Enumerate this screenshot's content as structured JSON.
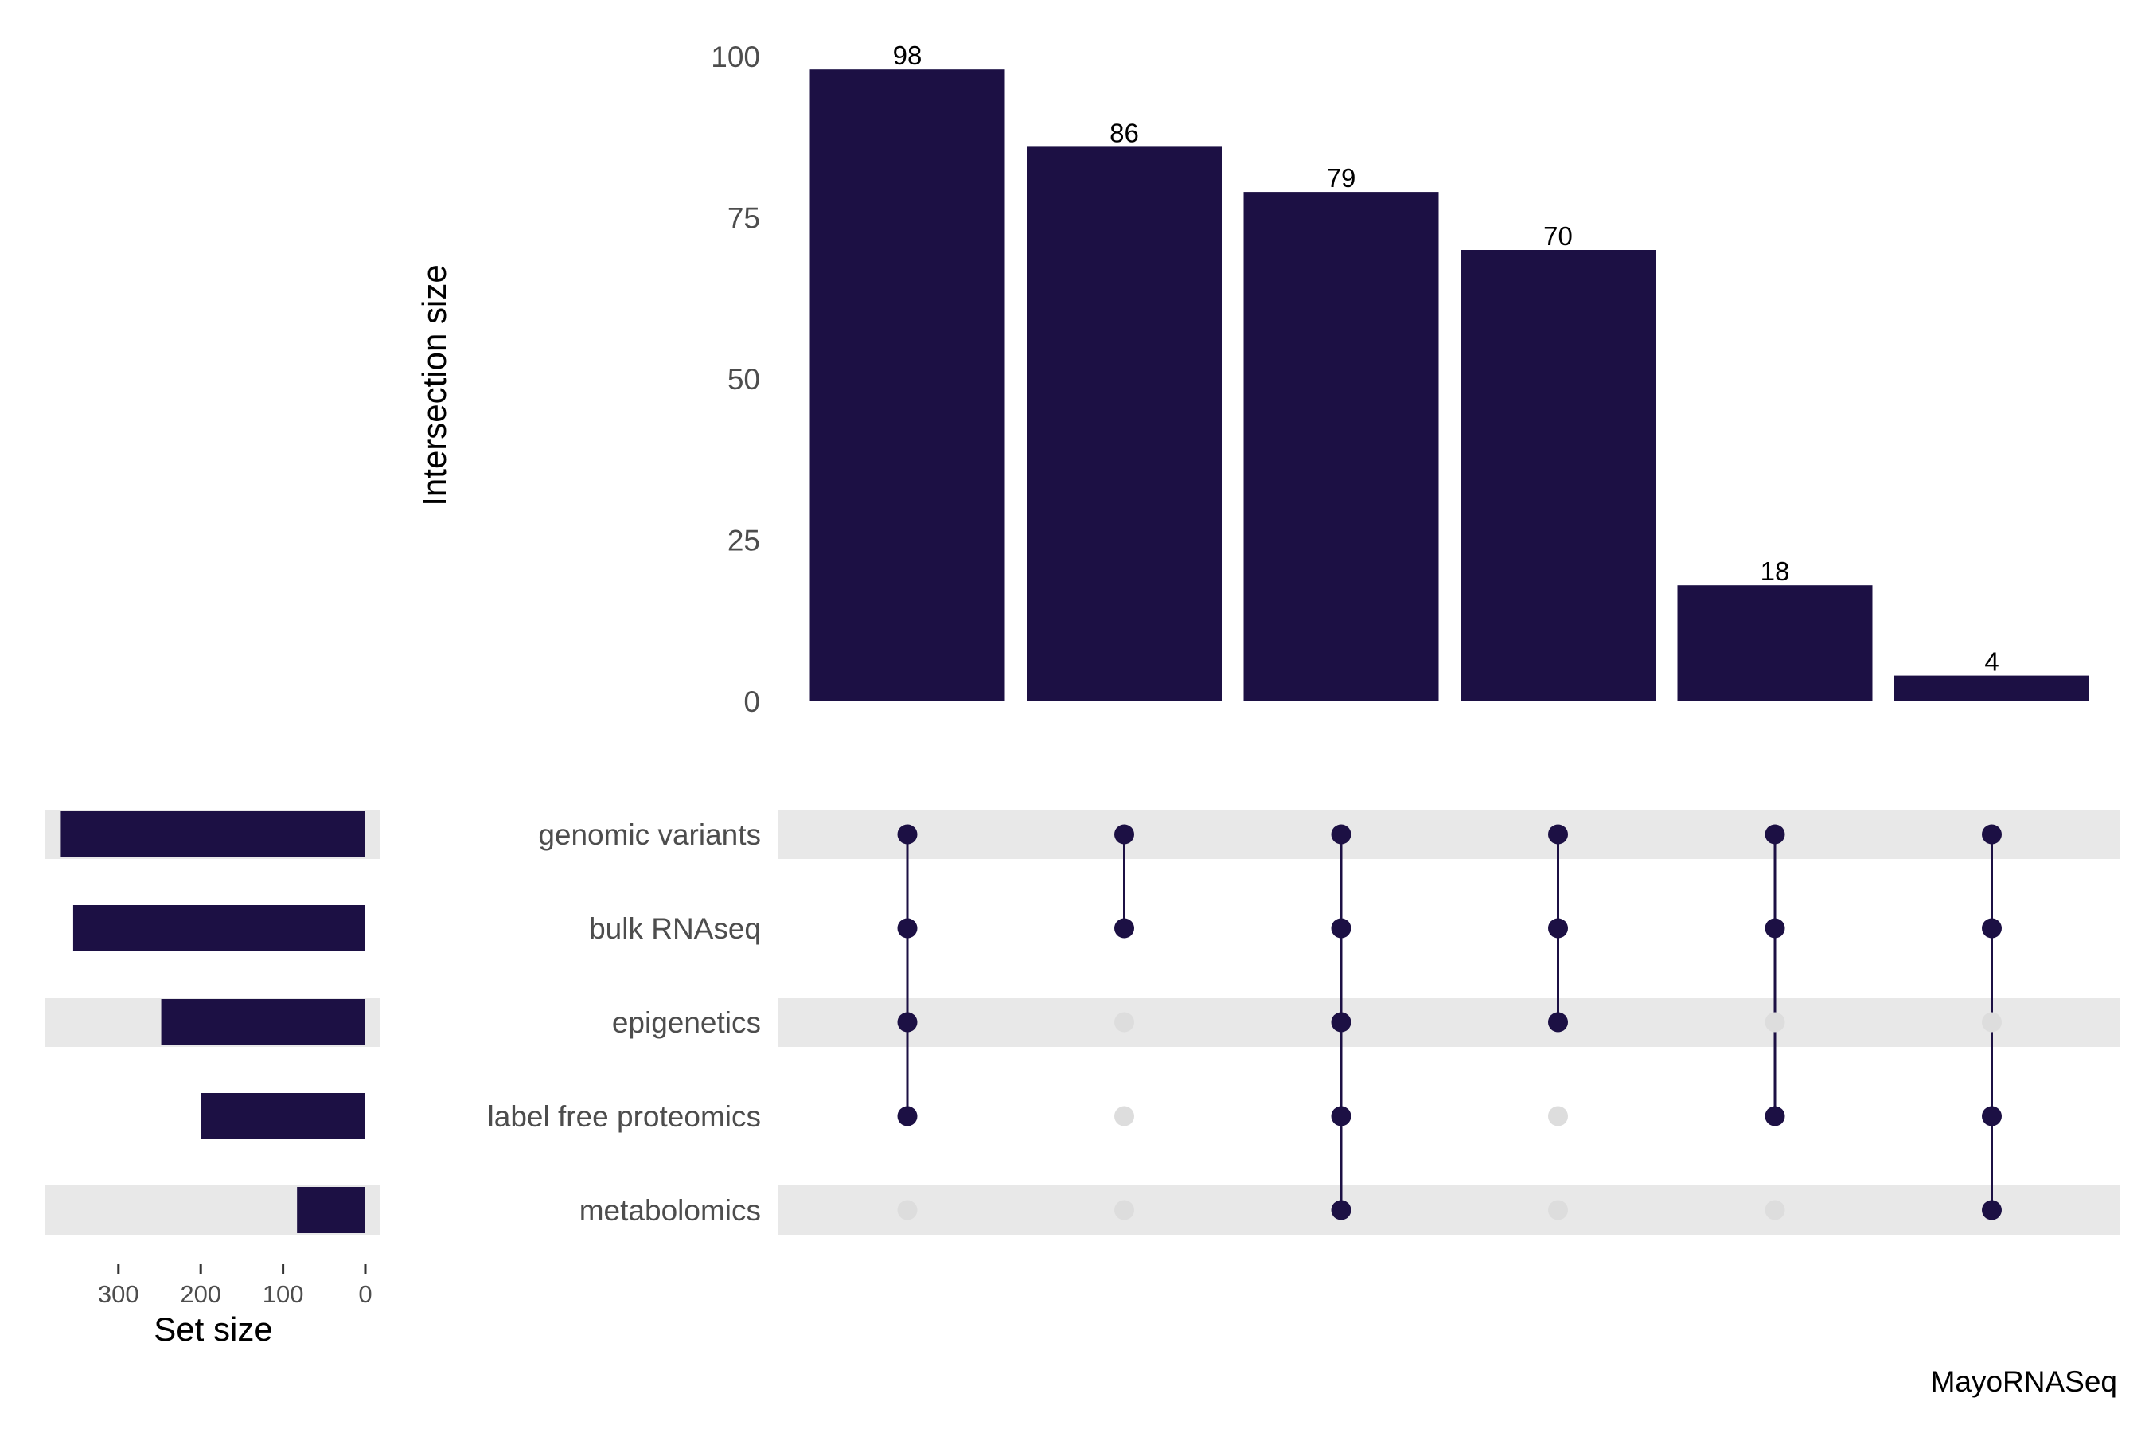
{
  "chart_data": {
    "type": "bar",
    "variant": "upset",
    "ylabel": "Intersection size",
    "ylim": [
      0,
      100
    ],
    "yticks": [
      0,
      25,
      50,
      75,
      100
    ],
    "intersection_sizes": [
      98,
      86,
      79,
      70,
      18,
      4
    ],
    "sets": [
      "genomic variants",
      "bulk RNAseq",
      "epigenetics",
      "label free proteomics",
      "metabolomics"
    ],
    "membership": [
      [
        1,
        1,
        1,
        1,
        0
      ],
      [
        1,
        1,
        0,
        0,
        0
      ],
      [
        1,
        1,
        1,
        1,
        1
      ],
      [
        1,
        1,
        1,
        0,
        0
      ],
      [
        1,
        1,
        0,
        1,
        0
      ],
      [
        1,
        1,
        0,
        1,
        1
      ]
    ],
    "set_sizes": [
      370,
      355,
      248,
      200,
      83
    ],
    "set_size_xlabel": "Set size",
    "set_size_xlim": [
      385,
      0
    ],
    "set_size_ticks": [
      300,
      200,
      100,
      0
    ],
    "caption": "MayoRNASeq",
    "colors": {
      "bar": "#1c1044",
      "stripe": "#e8e8e8",
      "inactive_dot": "#dddddd"
    },
    "grid": false
  }
}
